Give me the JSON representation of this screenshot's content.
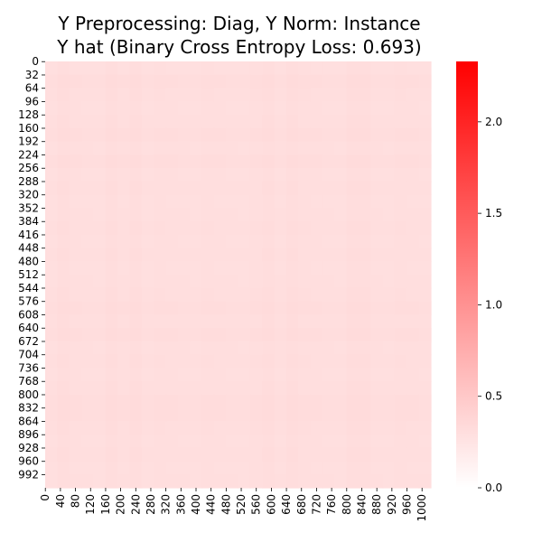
{
  "chart_data": {
    "type": "heatmap",
    "title_lines": [
      "Y Preprocessing: Diag, Y Norm: Instance",
      "Y hat (Binary Cross Entropy Loss: 0.693)"
    ],
    "xlabel": "",
    "ylabel": "",
    "matrix_size": [
      1024,
      1024
    ],
    "value_range_observed": [
      0.25,
      0.35
    ],
    "approx_value": 0.3,
    "x_tick_labels": [
      "0",
      "40",
      "80",
      "120",
      "160",
      "200",
      "240",
      "280",
      "320",
      "360",
      "400",
      "440",
      "480",
      "520",
      "560",
      "600",
      "640",
      "680",
      "720",
      "760",
      "800",
      "840",
      "880",
      "920",
      "960",
      "1000"
    ],
    "y_tick_labels": [
      "0",
      "32",
      "64",
      "96",
      "128",
      "160",
      "192",
      "224",
      "256",
      "288",
      "320",
      "352",
      "384",
      "416",
      "448",
      "480",
      "512",
      "544",
      "576",
      "608",
      "640",
      "672",
      "704",
      "736",
      "768",
      "800",
      "832",
      "864",
      "896",
      "928",
      "960",
      "992"
    ],
    "grid": false,
    "colorbar": {
      "vmin": 0.0,
      "vmax": 2.33,
      "ticks": [
        "0.0",
        "0.5",
        "1.0",
        "1.5",
        "2.0"
      ],
      "colors": [
        "#ffffff",
        "#ff0000"
      ],
      "placement": "right"
    },
    "pattern": "near-uniform light pink; faint vertical and horizontal banding (darker at rows/cols ~32, 160, 224, 576, 640, 800, 832)"
  }
}
